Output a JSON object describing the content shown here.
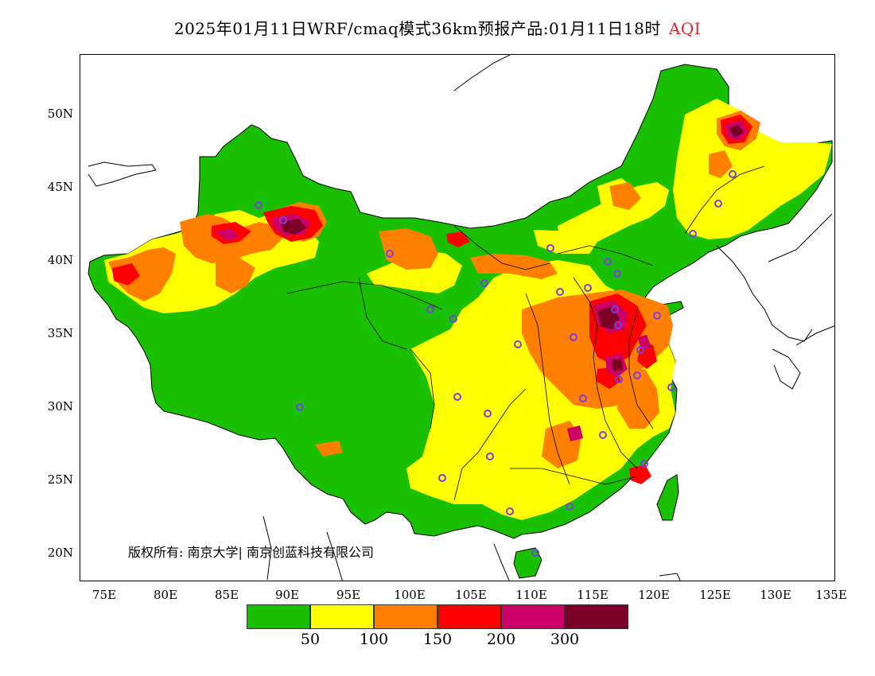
{
  "title": {
    "text": "2025年01月11日WRF/cmaq模式36km预报产品:01月11日18时",
    "variable": "AQI",
    "variable_color": "#e3242b"
  },
  "axes": {
    "lat_labels": [
      "50N",
      "45N",
      "40N",
      "35N",
      "30N",
      "25N",
      "20N"
    ],
    "lon_labels": [
      "75E",
      "80E",
      "85E",
      "90E",
      "95E",
      "100E",
      "105E",
      "110E",
      "115E",
      "120E",
      "125E",
      "130E",
      "135E"
    ]
  },
  "copyright": "版权所有: 南京大学| 南京创蓝科技有限公司",
  "legend": {
    "colors": [
      "#18c000",
      "#ffff00",
      "#ff7f00",
      "#ff0000",
      "#cc0066",
      "#7a0026"
    ],
    "labels": [
      "50",
      "100",
      "150",
      "200",
      "300"
    ]
  },
  "map_colors": {
    "good": "#18c000",
    "moderate": "#ffff00",
    "unhealthy_sensitive": "#ff7f00",
    "unhealthy": "#ff0000",
    "very_unhealthy": "#cc0066",
    "hazardous": "#7a0026",
    "station": "#7b3fe4"
  }
}
